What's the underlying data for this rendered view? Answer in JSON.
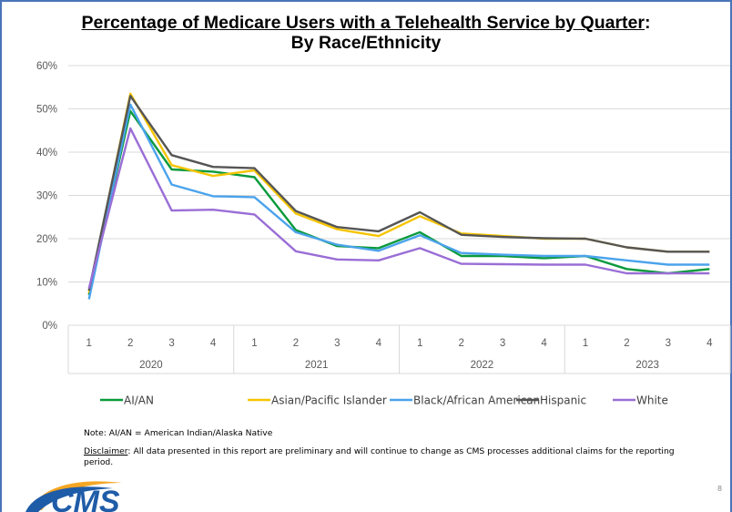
{
  "title": {
    "line1_underlined": "Percentage of Medicare Users with a Telehealth Service by Quarter",
    "line1_suffix": ":",
    "line2": "By Race/Ethnicity"
  },
  "notes": {
    "note": "Note: AI/AN = American Indian/Alaska Native",
    "disclaimer_label": "Disclaimer",
    "disclaimer_text": ": All data presented in this report are preliminary and will continue to change as CMS processes additional claims for the reporting period."
  },
  "logo": {
    "text": "CMS"
  },
  "page_number": "8",
  "chart_data": {
    "type": "line",
    "title": "Percentage of Medicare Users with a Telehealth Service by Quarter: By Race/Ethnicity",
    "x_quarters": [
      "1",
      "2",
      "3",
      "4",
      "1",
      "2",
      "3",
      "4",
      "1",
      "2",
      "3",
      "4",
      "1",
      "2",
      "3",
      "4"
    ],
    "x_years": [
      "2020",
      "2021",
      "2022",
      "2023"
    ],
    "ylim": [
      0,
      60
    ],
    "y_ticks": [
      "0%",
      "10%",
      "20%",
      "30%",
      "40%",
      "50%",
      "60%"
    ],
    "grid": true,
    "legend_position": "bottom",
    "series": [
      {
        "name": "AI/AN",
        "color": "#0a9a3c",
        "values": [
          7,
          49.5,
          36,
          35.5,
          34.2,
          22,
          18.3,
          17.8,
          21.5,
          16,
          16,
          15.5,
          16,
          13,
          12,
          13
        ]
      },
      {
        "name": "Asian/Pacific Islander",
        "color": "#f5c400",
        "values": [
          7.5,
          53.5,
          37,
          34.5,
          35.8,
          25.8,
          22.2,
          20.6,
          25.2,
          21.2,
          20.6,
          20,
          20,
          18,
          17,
          17
        ]
      },
      {
        "name": "Black/African American",
        "color": "#4ba3ec",
        "values": [
          6,
          51,
          32.5,
          29.8,
          29.6,
          21.5,
          18.6,
          17.2,
          20.8,
          16.7,
          16.3,
          16,
          16,
          15,
          14,
          14
        ]
      },
      {
        "name": "Hispanic",
        "color": "#555555",
        "values": [
          8,
          53,
          39.3,
          36.6,
          36.3,
          26.4,
          22.7,
          21.7,
          26.1,
          20.9,
          20.4,
          20.1,
          20,
          18,
          17,
          17
        ]
      },
      {
        "name": "White",
        "color": "#9a6ed6",
        "values": [
          8.5,
          45.5,
          26.5,
          26.7,
          25.6,
          17.1,
          15.2,
          15,
          17.8,
          14.2,
          14.1,
          14,
          14,
          12,
          12,
          12
        ]
      }
    ]
  }
}
